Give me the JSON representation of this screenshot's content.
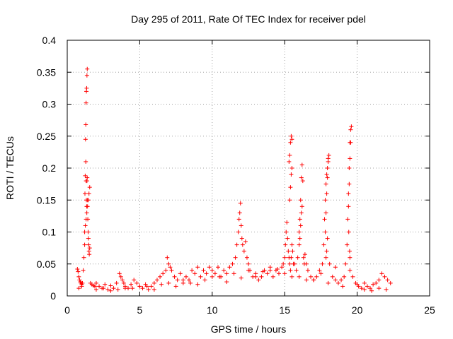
{
  "chart_data": {
    "type": "scatter",
    "title": "Day 295 of 2011, Rate Of TEC Index for receiver pdel",
    "xlabel": "GPS time / hours",
    "ylabel": "ROTI / TECUs",
    "xlim": [
      0,
      25
    ],
    "ylim": [
      0,
      0.4
    ],
    "x_ticks": [
      0,
      5,
      10,
      15,
      20,
      25
    ],
    "x_tick_labels": [
      "0",
      "5",
      "10",
      "15",
      "20",
      "25"
    ],
    "y_ticks": [
      0,
      0.05,
      0.1,
      0.15,
      0.2,
      0.25,
      0.3,
      0.35,
      0.4
    ],
    "y_tick_labels": [
      "0",
      "0.05",
      "0.1",
      "0.15",
      "0.2",
      "0.25",
      "0.3",
      "0.35",
      "0.4"
    ],
    "grid": true,
    "marker": "plus",
    "color": "#ff0000",
    "series": [
      {
        "x": [
          0.7,
          0.75,
          0.8,
          0.85,
          0.9,
          0.95,
          1.0,
          1.05,
          1.1,
          1.15,
          1.2,
          1.22,
          1.24,
          1.26,
          1.28,
          1.3,
          1.32,
          1.34,
          1.36,
          1.38,
          1.4,
          1.42,
          1.44,
          1.46,
          1.48,
          1.5,
          1.52,
          1.55,
          1.2,
          1.25,
          1.3,
          1.35,
          1.4,
          1.45,
          1.5,
          1.55,
          1.28,
          1.3,
          1.32,
          1.34,
          1.36,
          1.38,
          1.6,
          1.7,
          1.8,
          1.9,
          2.0,
          2.2,
          2.4,
          2.6,
          2.8,
          3.0,
          3.2,
          3.4,
          3.6,
          3.7,
          3.8,
          3.9,
          4.0,
          4.2,
          4.4,
          4.6,
          4.8,
          5.0,
          5.2,
          5.4,
          5.6,
          5.8,
          6.0,
          6.2,
          6.4,
          6.6,
          6.8,
          6.9,
          7.0,
          7.1,
          7.2,
          7.4,
          7.6,
          7.8,
          8.0,
          8.2,
          8.4,
          8.6,
          8.8,
          9.0,
          9.2,
          9.4,
          9.6,
          9.8,
          10.0,
          10.2,
          10.4,
          10.6,
          10.8,
          11.0,
          11.2,
          11.4,
          11.6,
          11.7,
          11.8,
          11.85,
          11.9,
          11.95,
          12.0,
          12.05,
          12.1,
          12.2,
          12.3,
          12.4,
          12.5,
          12.6,
          12.8,
          13.0,
          13.2,
          13.4,
          13.6,
          13.8,
          14.0,
          14.2,
          14.4,
          14.6,
          14.8,
          14.9,
          15.0,
          15.05,
          15.1,
          15.15,
          15.2,
          15.25,
          15.3,
          15.35,
          15.4,
          15.45,
          15.5,
          15.55,
          15.6,
          15.3,
          15.35,
          15.4,
          15.45,
          15.5,
          15.35,
          15.4,
          15.45,
          15.5,
          15.7,
          15.8,
          15.9,
          16.0,
          16.05,
          16.1,
          16.15,
          16.2,
          16.25,
          16.3,
          16.35,
          16.0,
          16.05,
          16.1,
          16.15,
          16.2,
          16.4,
          16.5,
          16.6,
          16.8,
          17.0,
          17.2,
          17.4,
          17.6,
          17.7,
          17.75,
          17.8,
          17.85,
          17.9,
          17.95,
          18.0,
          18.05,
          17.8,
          17.85,
          17.9,
          17.95,
          18.0,
          17.85,
          17.9,
          17.95,
          18.1,
          18.3,
          18.5,
          18.7,
          18.9,
          19.1,
          19.2,
          19.3,
          19.35,
          19.4,
          19.45,
          19.5,
          19.55,
          19.6,
          19.4,
          19.45,
          19.5,
          19.55,
          19.42,
          19.48,
          19.5,
          19.7,
          19.9,
          20.1,
          20.3,
          20.5,
          20.7,
          20.9,
          21.1,
          21.3,
          21.5,
          21.7,
          21.9,
          22.1,
          22.3,
          0.8,
          1.0,
          2.0,
          3.0,
          4.0,
          5.0,
          6.0,
          7.0,
          8.0,
          9.0,
          10.0,
          11.0,
          12.0,
          13.0,
          14.0,
          15.0,
          16.0,
          17.0,
          18.0,
          19.0,
          20.0,
          21.0,
          22.0,
          2.5,
          3.5,
          4.5,
          5.5,
          6.5,
          7.5,
          8.5,
          9.5,
          10.5,
          11.5,
          12.5,
          13.5,
          14.5,
          15.5,
          16.5,
          17.5,
          18.5,
          19.5,
          20.5,
          21.5
        ],
        "y": [
          0.042,
          0.038,
          0.03,
          0.025,
          0.022,
          0.02,
          0.018,
          0.02,
          0.04,
          0.06,
          0.08,
          0.16,
          0.188,
          0.245,
          0.268,
          0.302,
          0.32,
          0.325,
          0.345,
          0.355,
          0.15,
          0.12,
          0.1,
          0.09,
          0.08,
          0.07,
          0.065,
          0.075,
          0.1,
          0.11,
          0.12,
          0.13,
          0.14,
          0.15,
          0.16,
          0.17,
          0.21,
          0.18,
          0.15,
          0.14,
          0.18,
          0.185,
          0.02,
          0.018,
          0.016,
          0.015,
          0.02,
          0.015,
          0.012,
          0.018,
          0.01,
          0.016,
          0.012,
          0.02,
          0.035,
          0.03,
          0.025,
          0.02,
          0.015,
          0.012,
          0.018,
          0.025,
          0.02,
          0.015,
          0.012,
          0.018,
          0.01,
          0.015,
          0.02,
          0.025,
          0.03,
          0.035,
          0.04,
          0.06,
          0.05,
          0.045,
          0.04,
          0.03,
          0.025,
          0.035,
          0.02,
          0.03,
          0.025,
          0.04,
          0.035,
          0.045,
          0.03,
          0.04,
          0.035,
          0.045,
          0.04,
          0.035,
          0.045,
          0.03,
          0.04,
          0.035,
          0.045,
          0.05,
          0.06,
          0.08,
          0.1,
          0.12,
          0.13,
          0.145,
          0.11,
          0.09,
          0.08,
          0.07,
          0.085,
          0.06,
          0.05,
          0.04,
          0.03,
          0.035,
          0.025,
          0.03,
          0.04,
          0.035,
          0.045,
          0.03,
          0.04,
          0.035,
          0.045,
          0.05,
          0.06,
          0.08,
          0.1,
          0.115,
          0.09,
          0.07,
          0.06,
          0.05,
          0.04,
          0.06,
          0.08,
          0.07,
          0.05,
          0.21,
          0.22,
          0.24,
          0.25,
          0.245,
          0.15,
          0.17,
          0.19,
          0.2,
          0.05,
          0.04,
          0.06,
          0.1,
          0.12,
          0.15,
          0.185,
          0.205,
          0.18,
          0.06,
          0.05,
          0.08,
          0.09,
          0.11,
          0.13,
          0.14,
          0.065,
          0.05,
          0.04,
          0.03,
          0.025,
          0.03,
          0.04,
          0.05,
          0.08,
          0.12,
          0.15,
          0.175,
          0.19,
          0.2,
          0.215,
          0.22,
          0.1,
          0.13,
          0.16,
          0.185,
          0.21,
          0.06,
          0.07,
          0.09,
          0.05,
          0.03,
          0.025,
          0.02,
          0.025,
          0.03,
          0.05,
          0.08,
          0.12,
          0.16,
          0.2,
          0.24,
          0.26,
          0.265,
          0.14,
          0.175,
          0.215,
          0.24,
          0.1,
          0.07,
          0.06,
          0.03,
          0.02,
          0.015,
          0.012,
          0.01,
          0.015,
          0.012,
          0.018,
          0.02,
          0.025,
          0.035,
          0.03,
          0.025,
          0.02,
          0.012,
          0.015,
          0.01,
          0.008,
          0.012,
          0.015,
          0.01,
          0.02,
          0.025,
          0.018,
          0.03,
          0.022,
          0.028,
          0.03,
          0.04,
          0.035,
          0.03,
          0.025,
          0.02,
          0.015,
          0.018,
          0.008,
          0.01,
          0.012,
          0.01,
          0.012,
          0.015,
          0.018,
          0.015,
          0.02,
          0.025,
          0.03,
          0.035,
          0.04,
          0.038,
          0.042,
          0.03,
          0.025,
          0.035,
          0.045,
          0.04,
          0.02,
          0.012
        ]
      }
    ]
  }
}
